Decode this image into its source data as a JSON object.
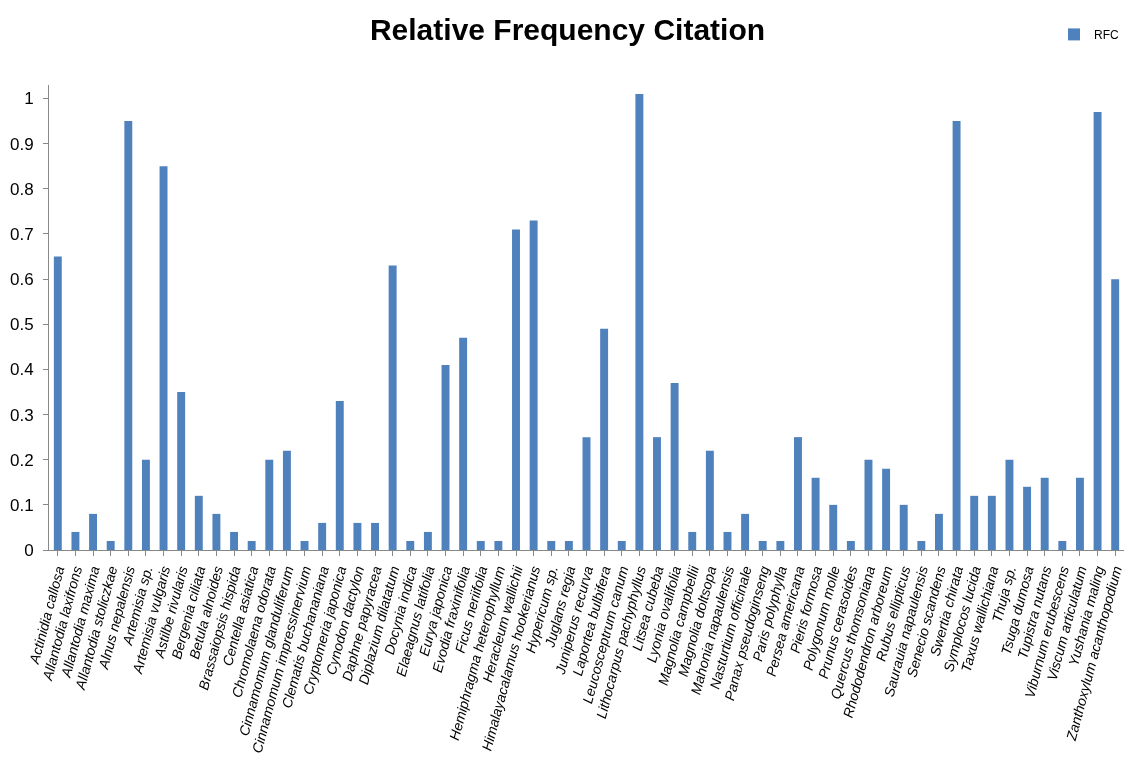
{
  "chart_data": {
    "type": "bar",
    "title": "Relative Frequency Citation",
    "categories": [
      "Actinidia callosa",
      "Allantodia laxifrons",
      "Allantodia maxima",
      "Allantodia stoliczkae",
      "Alnus nepalensis",
      "Artemisia sp.",
      "Artemisia vulgaris",
      "Astilbe rivularis",
      "Bergenia ciliata",
      "Betula alnoides",
      "Brassaiopsis hispida",
      "Centella asiatica",
      "Chromolaena odorata",
      "Cinnamomum glanduliferum",
      "Cinnamomum impressinervium",
      "Clematis buchananiana",
      "Cryptomeria japonica",
      "Cynodon dactylon",
      "Daphne papyracea",
      "Diplazium dilatatum",
      "Docynia indica",
      "Elaeagnus latifolia",
      "Eurya japonica",
      "Evodia fraxinifolia",
      "Ficus neriifolia",
      "Hemiphragma heterophyllum",
      "Heracleum wallichii",
      "Himalayacalamus hookerianus",
      "Hypericum sp.",
      "Juglans regia",
      "Juniperus recurva",
      "Laportea bulbifera",
      "Leucosceptrum canum",
      "Lithocarpus pachyphyllus",
      "Litsea cubeba",
      "Lyonia ovalifolia",
      "Magnolia campbellii",
      "Magnolia doltsopa",
      "Mahonia napaulensis",
      "Nasturtium officinale",
      "Panax pseudoginseng",
      "Paris polyphylla",
      "Persea americana",
      "Pieris formosa",
      "Polygonum molle",
      "Prunus cerasoides",
      "Quercus thomsoniana",
      "Rhododendron arboreum",
      "Rubus ellipticus",
      "Saurauia napaulensis",
      "Senecio scandens",
      "Swertia chirata",
      "Symplocos lucida",
      "Taxus wallichiana",
      "Thuja sp.",
      "Tsuga dumosa",
      "Tupistra nutans",
      "Viburnum erubescens",
      "Viscum articulatum",
      "Yushania maling",
      "Zanthoxylum acanthopodium"
    ],
    "series": [
      {
        "name": "RFC",
        "color": "#4f81bd",
        "values": [
          0.65,
          0.04,
          0.08,
          0.02,
          0.95,
          0.2,
          0.85,
          0.35,
          0.12,
          0.08,
          0.04,
          0.02,
          0.2,
          0.22,
          0.02,
          0.06,
          0.33,
          0.06,
          0.06,
          0.63,
          0.02,
          0.04,
          0.41,
          0.47,
          0.02,
          0.02,
          0.71,
          0.73,
          0.02,
          0.02,
          0.25,
          0.49,
          0.02,
          1.01,
          0.25,
          0.37,
          0.04,
          0.22,
          0.04,
          0.08,
          0.02,
          0.02,
          0.25,
          0.16,
          0.1,
          0.02,
          0.2,
          0.18,
          0.1,
          0.02,
          0.08,
          0.95,
          0.12,
          0.12,
          0.2,
          0.14,
          0.16,
          0.02,
          0.16,
          0.97,
          0.6
        ]
      }
    ],
    "ylim": [
      0,
      1.03
    ],
    "yticks": [
      0,
      0.1,
      0.2,
      0.3,
      0.4,
      0.5,
      0.6,
      0.7,
      0.8,
      0.9,
      1
    ],
    "legend": "top right"
  }
}
